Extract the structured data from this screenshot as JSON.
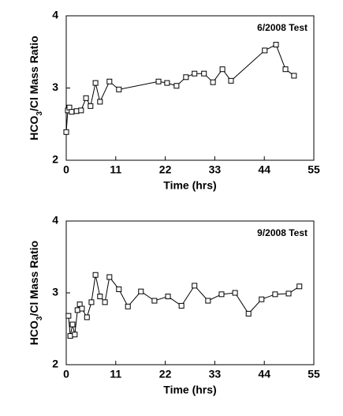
{
  "chart_data": [
    {
      "type": "line",
      "annotation": "6/2008 Test",
      "x_label": "Time (hrs)",
      "y_label": {
        "text": "HCO",
        "subscript": "3",
        "rest": "/Cl Mass Ratio"
      },
      "xlim": [
        0,
        55
      ],
      "xticks": [
        0,
        11,
        22,
        33,
        44,
        55
      ],
      "ylim": [
        2,
        4
      ],
      "yticks": [
        2,
        3,
        4
      ],
      "color": "#000000",
      "x": [
        0,
        0.35,
        0.7,
        1.2,
        2.3,
        3.3,
        4.4,
        5.4,
        6.5,
        7.5,
        9.6,
        11.7,
        20.5,
        22.4,
        24.5,
        26.6,
        28.5,
        30.6,
        32.6,
        34.7,
        36.6,
        44.1,
        46.6,
        48.7,
        50.6
      ],
      "values": [
        2.39,
        2.69,
        2.73,
        2.67,
        2.68,
        2.69,
        2.86,
        2.75,
        3.07,
        2.81,
        3.09,
        2.98,
        3.09,
        3.07,
        3.03,
        3.15,
        3.2,
        3.2,
        3.08,
        3.26,
        3.1,
        3.52,
        3.6,
        3.26,
        3.17
      ]
    },
    {
      "type": "line",
      "annotation": "9/2008 Test",
      "x_label": "Time (hrs)",
      "y_label": {
        "text": "HCO",
        "subscript": "3",
        "rest": "/Cl Mass Ratio"
      },
      "xlim": [
        0,
        55
      ],
      "xticks": [
        0,
        11,
        22,
        33,
        44,
        55
      ],
      "ylim": [
        2,
        4
      ],
      "yticks": [
        2,
        3,
        4
      ],
      "color": "#000000",
      "x": [
        0.5,
        0.9,
        1.4,
        1.9,
        2.5,
        3.0,
        3.5,
        4.6,
        5.6,
        6.5,
        7.5,
        8.6,
        9.6,
        11.7,
        13.7,
        16.6,
        19.6,
        22.6,
        25.6,
        28.5,
        31.5,
        34.5,
        37.5,
        40.5,
        43.4,
        46.4,
        49.4,
        51.8
      ],
      "values": [
        2.68,
        2.4,
        2.56,
        2.42,
        2.76,
        2.84,
        2.78,
        2.66,
        2.87,
        3.25,
        2.95,
        2.87,
        3.22,
        3.05,
        2.81,
        3.02,
        2.89,
        2.95,
        2.82,
        3.1,
        2.89,
        2.98,
        3.0,
        2.71,
        2.91,
        2.98,
        2.99,
        3.09
      ]
    }
  ]
}
